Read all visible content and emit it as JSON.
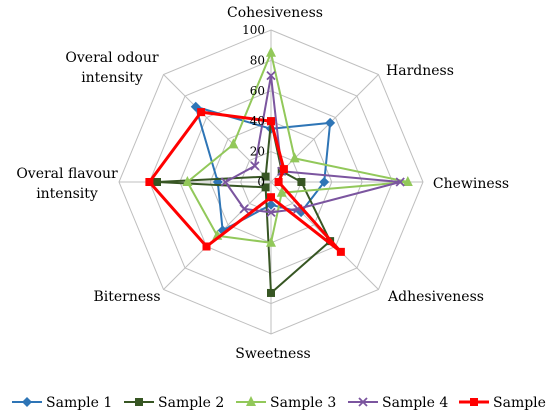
{
  "chart_data": {
    "type": "radar",
    "axes": [
      "Cohesiveness",
      "Hardness",
      "Chewiness",
      "Adhesiveness",
      "Sweetness",
      "Biterness",
      "Overal flavour intensity",
      "Overal odour intensity"
    ],
    "axis_label_lines": [
      [
        "Cohesiveness"
      ],
      [
        "Hardness"
      ],
      [
        "Chewiness"
      ],
      [
        "Adhesiveness"
      ],
      [
        "Sweetness"
      ],
      [
        "Biterness"
      ],
      [
        "Overal flavour",
        "intensity"
      ],
      [
        "Overal odour",
        "intensity"
      ]
    ],
    "rlim": [
      0,
      100
    ],
    "ticks": [
      0,
      20,
      40,
      60,
      80,
      100
    ],
    "grid": true,
    "legend_position": "bottom",
    "series": [
      {
        "name": "Sample 1",
        "color": "#2E75B6",
        "marker": "diamond",
        "values": [
          35,
          55,
          35,
          28,
          15,
          45,
          35,
          70
        ]
      },
      {
        "name": "Sample 2",
        "color": "#375623",
        "marker": "square",
        "values": [
          40,
          10,
          20,
          55,
          73,
          5,
          75,
          5
        ]
      },
      {
        "name": "Sample 3",
        "color": "#92C85A",
        "marker": "triangle",
        "values": [
          85,
          22,
          90,
          10,
          40,
          50,
          55,
          35
        ]
      },
      {
        "name": "Sample 4",
        "color": "#7B559F",
        "marker": "x",
        "values": [
          70,
          10,
          85,
          25,
          20,
          25,
          30,
          15
        ]
      },
      {
        "name": "Sample 5",
        "color": "#FF0000",
        "marker": "square",
        "values": [
          40,
          12,
          5,
          65,
          10,
          60,
          80,
          65
        ]
      }
    ]
  }
}
